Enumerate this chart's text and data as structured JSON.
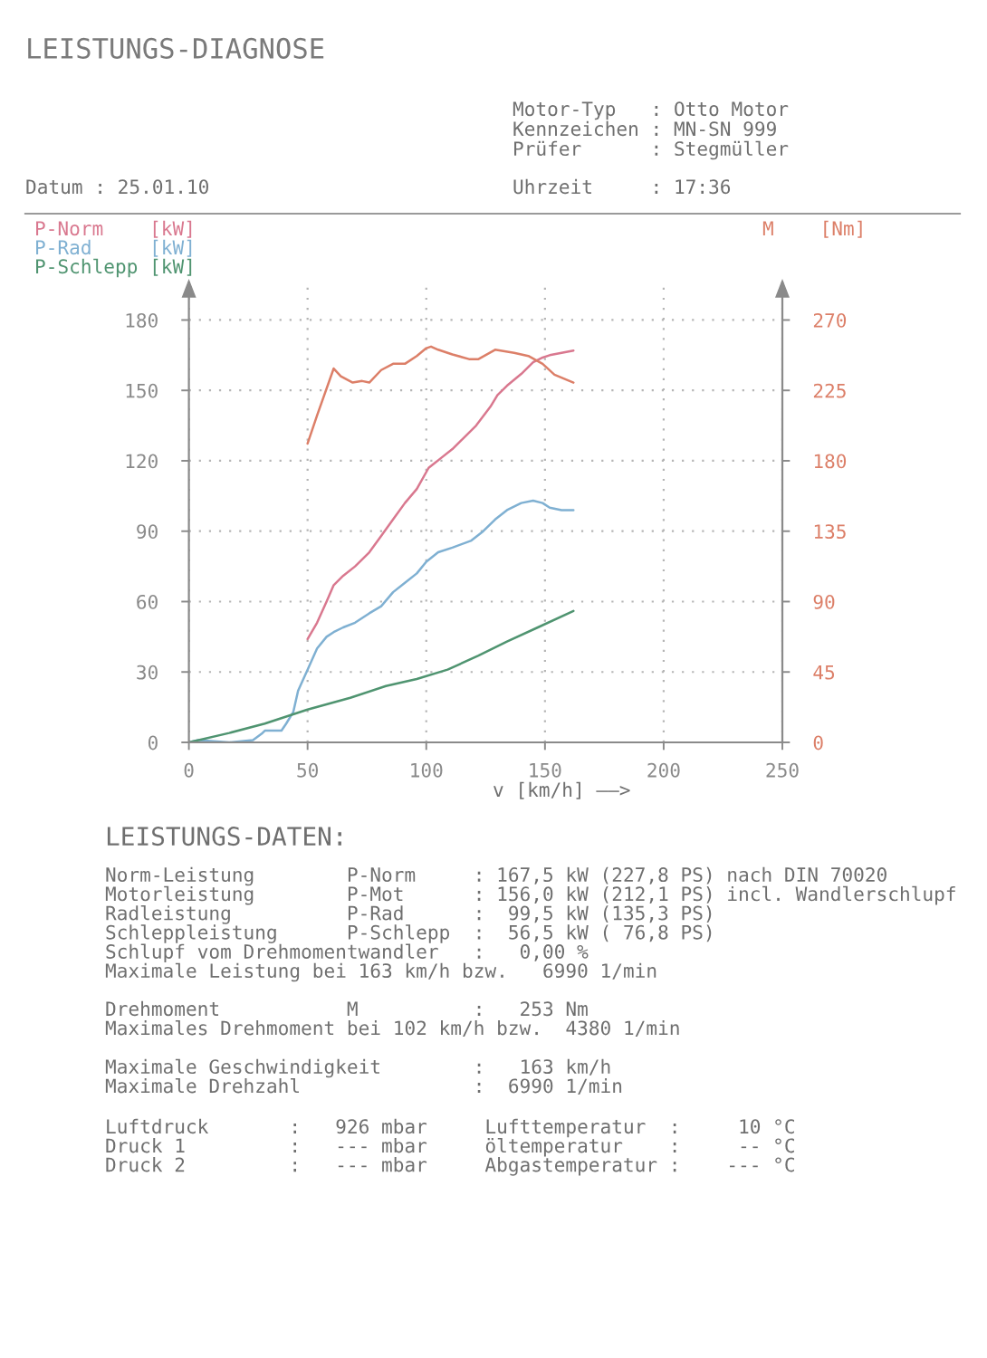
{
  "chart_data": {
    "type": "line",
    "title": "LEISTUNGS-DIAGNOSE",
    "xlabel": "v [km/h] ——>",
    "xlim": [
      0,
      250
    ],
    "xticks": [
      0,
      50,
      100,
      150,
      200,
      250
    ],
    "ylim": [
      0,
      196
    ],
    "yticks": [
      0,
      30,
      60,
      90,
      120,
      150,
      180
    ],
    "y2lim": [
      0,
      294
    ],
    "y2ticks": [
      0,
      45,
      90,
      135,
      180,
      225,
      270
    ],
    "grid": true,
    "legend": "top",
    "line_style": "solid",
    "series": [
      {
        "name": "P-Norm    [kW]",
        "color": "#d9788f",
        "x": [
          50,
          54,
          58,
          61,
          65,
          70,
          76,
          81,
          86,
          91,
          96,
          101,
          106,
          111,
          116,
          121,
          127,
          130,
          134,
          140,
          145,
          149,
          152,
          157,
          162
        ],
        "values": [
          44,
          51,
          60,
          67,
          71,
          75,
          81,
          88,
          95,
          102,
          108,
          117,
          121,
          125,
          130,
          135,
          143,
          148,
          152,
          157,
          162,
          164,
          165,
          166,
          167
        ]
      },
      {
        "name": "P-Rad     [kW]",
        "color": "#7fb0d2",
        "x": [
          0,
          4,
          17,
          27,
          31,
          32,
          39,
          41,
          44,
          46,
          50,
          54,
          58,
          61,
          65,
          70,
          76,
          81,
          86,
          91,
          96,
          100,
          105,
          111,
          119,
          124,
          129,
          134,
          140,
          145,
          149,
          152,
          157,
          162
        ],
        "values": [
          0,
          1,
          0,
          1,
          4,
          5,
          5,
          8,
          13,
          22,
          31,
          40,
          45,
          47,
          49,
          51,
          55,
          58,
          64,
          68,
          72,
          77,
          81,
          83,
          86,
          90,
          95,
          99,
          102,
          103,
          102,
          100,
          99,
          99
        ]
      },
      {
        "name": "P-Schlepp [kW]",
        "color": "#4f9470",
        "x": [
          0,
          17,
          32,
          50,
          68,
          83,
          96,
          109,
          122,
          134,
          147,
          162
        ],
        "values": [
          0,
          4,
          8,
          14,
          19,
          24,
          27,
          31,
          37,
          43,
          49,
          56
        ]
      },
      {
        "name": "M    [Nm]",
        "color": "#dc7f68",
        "axis": "y2",
        "x": [
          50,
          54,
          61,
          64,
          69,
          73,
          76,
          81,
          86,
          91,
          96,
          100,
          102,
          105,
          111,
          118,
          122,
          129,
          137,
          143,
          149,
          154,
          162
        ],
        "values": [
          191,
          209,
          239,
          234,
          230,
          231,
          230,
          238,
          242,
          242,
          247,
          252,
          253,
          251,
          248,
          245,
          245,
          251,
          249,
          247,
          242,
          235,
          230
        ]
      }
    ],
    "annotations": [
      "Motor-Typ   : Otto Motor",
      "Kennzeichen : MN-SN 999",
      "Prüfer      : Stegmüller",
      "Datum : 25.01.10",
      "Uhrzeit     : 17:36",
      "LEISTUNGS-DATEN:",
      "Norm-Leistung        P-Norm     : 167,5 kW (227,8 PS) nach DIN 70020",
      "Motorleistung        P-Mot      : 156,0 kW (212,1 PS) incl. Wandlerschlupf",
      "Radleistung          P-Rad      :  99,5 kW (135,3 PS)",
      "Schleppleistung      P-Schlepp  :  56,5 kW ( 76,8 PS)",
      "Schlupf vom Drehmomentwandler   :   0,00 %",
      "Maximale Leistung bei 163 km/h bzw.   6990 1/min",
      "Drehmoment           M          :   253 Nm",
      "Maximales Drehmoment bei 102 km/h bzw.  4380 1/min",
      "Maximale Geschwindigkeit        :   163 km/h",
      "Maximale Drehzahl               :  6990 1/min",
      "Luftdruck       :   926 mbar     Lufttemperatur  :     10 °C",
      "Druck 1         :   --- mbar     öltemperatur    :     -- °C",
      "Druck 2         :   --- mbar     Abgastemperatur :    --- °C"
    ]
  }
}
